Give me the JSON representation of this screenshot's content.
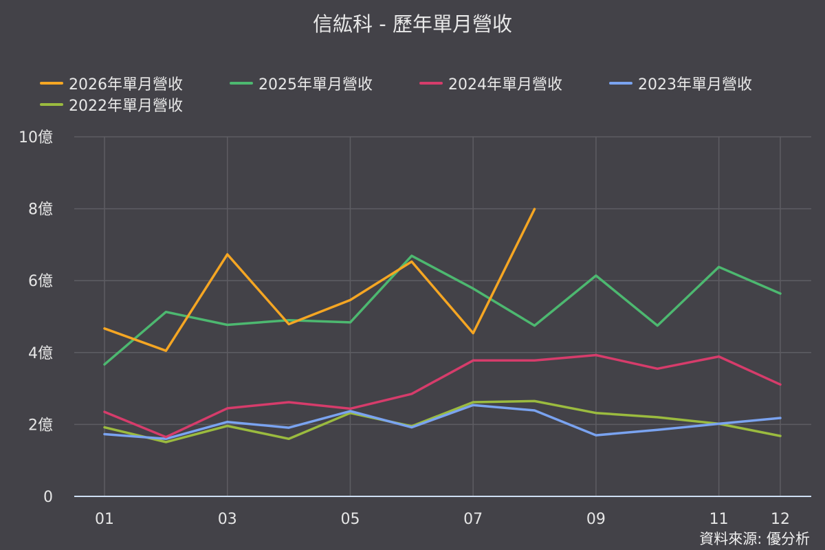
{
  "chart_data": {
    "type": "line",
    "title": "信紘科 - 歷年單月營收",
    "categories": [
      "01",
      "02",
      "03",
      "04",
      "05",
      "06",
      "07",
      "08",
      "09",
      "10",
      "11",
      "12"
    ],
    "x_tick_labels": [
      "01",
      "03",
      "05",
      "07",
      "09",
      "11",
      "12"
    ],
    "y_ticks": [
      {
        "value": 0,
        "label": "0"
      },
      {
        "value": 2,
        "label": "2億"
      },
      {
        "value": 4,
        "label": "4億"
      },
      {
        "value": 6,
        "label": "6億"
      },
      {
        "value": 8,
        "label": "8億"
      },
      {
        "value": 10,
        "label": "10億"
      }
    ],
    "ylim": [
      0,
      10
    ],
    "grid": true,
    "legend_position": "top",
    "series": [
      {
        "name": "2026年單月營收",
        "color": "#f5a623",
        "values": [
          4.67,
          4.05,
          6.73,
          4.79,
          5.46,
          6.53,
          4.54,
          7.99,
          null,
          null,
          null,
          null
        ]
      },
      {
        "name": "2025年單月營收",
        "color": "#4db870",
        "values": [
          3.67,
          5.13,
          4.77,
          4.9,
          4.84,
          6.69,
          5.78,
          4.75,
          6.14,
          4.75,
          6.38,
          5.64
        ]
      },
      {
        "name": "2024年單月營收",
        "color": "#d63c6b",
        "values": [
          2.35,
          1.65,
          2.45,
          2.62,
          2.44,
          2.85,
          3.78,
          3.78,
          3.93,
          3.55,
          3.89,
          3.11
        ]
      },
      {
        "name": "2023年單月營收",
        "color": "#7aa3f0",
        "values": [
          1.73,
          1.6,
          2.07,
          1.91,
          2.37,
          1.92,
          2.54,
          2.39,
          1.7,
          1.85,
          2.02,
          2.18
        ]
      },
      {
        "name": "2022年單月營收",
        "color": "#9bbb3f",
        "values": [
          1.92,
          1.51,
          1.96,
          1.6,
          2.32,
          1.95,
          2.62,
          2.65,
          2.32,
          2.2,
          2.02,
          1.68
        ]
      }
    ]
  },
  "source": "資料來源: 優分析"
}
